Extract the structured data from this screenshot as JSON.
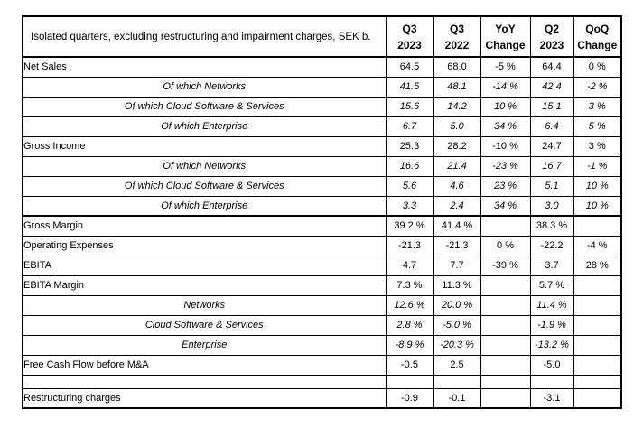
{
  "table": {
    "header": {
      "label": "Isolated quarters, excluding restructuring and impairment charges, SEK b.",
      "columns": [
        {
          "line1": "Q3",
          "line2": "2023"
        },
        {
          "line1": "Q3",
          "line2": "2022"
        },
        {
          "line1": "YoY",
          "line2": "Change"
        },
        {
          "line1": "Q2",
          "line2": "2023"
        },
        {
          "line1": "QoQ",
          "line2": "Change"
        }
      ]
    },
    "rows": [
      {
        "label": "Net Sales",
        "style": "main",
        "values": [
          "64.5",
          "68.0",
          "-5 %",
          "64.4",
          "0 %"
        ]
      },
      {
        "label": "Of which Networks",
        "style": "sub",
        "values": [
          "41.5",
          "48.1",
          "-14 %",
          "42.4",
          "-2 %"
        ]
      },
      {
        "label": "Of which Cloud Software & Services",
        "style": "sub",
        "values": [
          "15.6",
          "14.2",
          "10 %",
          "15.1",
          "3 %"
        ]
      },
      {
        "label": "Of which Enterprise",
        "style": "sub",
        "values": [
          "6.7",
          "5.0",
          "34 %",
          "6.4",
          "5 %"
        ]
      },
      {
        "label": "Gross Income",
        "style": "main",
        "values": [
          "25.3",
          "28.2",
          "-10 %",
          "24.7",
          "3 %"
        ]
      },
      {
        "label": "Of which Networks",
        "style": "sub",
        "values": [
          "16.6",
          "21.4",
          "-23 %",
          "16.7",
          "-1 %"
        ]
      },
      {
        "label": "Of which Cloud Software & Services",
        "style": "sub",
        "values": [
          "5.6",
          "4.6",
          "23 %",
          "5.1",
          "10 %"
        ]
      },
      {
        "label": "Of which Enterprise",
        "style": "sub",
        "values": [
          "3.3",
          "2.4",
          "34 %",
          "3.0",
          "10 %"
        ]
      },
      {
        "label": "Gross Margin",
        "style": "main",
        "thick_top": true,
        "values": [
          "39.2 %",
          "41.4 %",
          "",
          "38.3 %",
          ""
        ]
      },
      {
        "label": "Operating Expenses",
        "style": "main",
        "values": [
          "-21.3",
          "-21.3",
          "0 %",
          "-22.2",
          "-4 %"
        ]
      },
      {
        "label": "EBITA",
        "style": "main",
        "values": [
          "4.7",
          "7.7",
          "-39 %",
          "3.7",
          "28 %"
        ]
      },
      {
        "label": "EBITA Margin",
        "style": "main",
        "values": [
          "7.3 %",
          "11.3 %",
          "",
          "5.7 %",
          ""
        ]
      },
      {
        "label": "Networks",
        "style": "sub",
        "values": [
          "12.6 %",
          "20.0 %",
          "",
          "11.4 %",
          ""
        ]
      },
      {
        "label": "Cloud Software & Services",
        "style": "sub",
        "values": [
          "2.8 %",
          "-5.0 %",
          "",
          "-1.9 %",
          ""
        ]
      },
      {
        "label": "Enterprise",
        "style": "sub",
        "values": [
          "-8.9 %",
          "-20.3 %",
          "",
          "-13.2 %",
          ""
        ]
      },
      {
        "label": "Free Cash Flow before M&A",
        "style": "main",
        "values": [
          "-0.5",
          "2.5",
          "",
          "-5.0",
          ""
        ]
      },
      {
        "label": "",
        "style": "separator",
        "values": [
          "",
          "",
          "",
          "",
          ""
        ]
      },
      {
        "label": "Restructuring charges",
        "style": "main",
        "values": [
          "-0.9",
          "-0.1",
          "",
          "-3.1",
          ""
        ]
      }
    ],
    "layout": {
      "label_col_width": 402,
      "value_col_widths": [
        53,
        52,
        55,
        48,
        53
      ],
      "border_color": "#000000"
    }
  }
}
